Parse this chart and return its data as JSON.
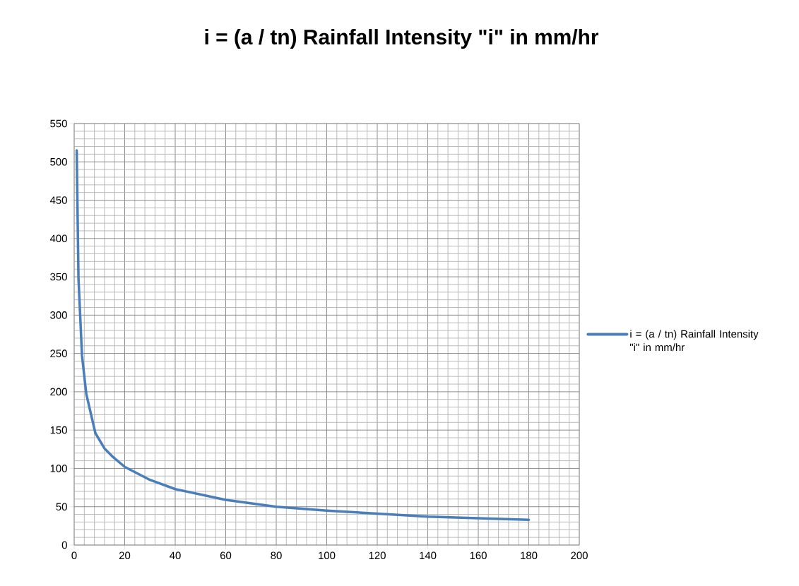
{
  "chart_data": {
    "type": "line",
    "title": "i = (a / tn) Rainfall Intensity \"i\" in mm/hr",
    "x": [
      1,
      1.7,
      3.1,
      4.8,
      8.4,
      12,
      15,
      20,
      30,
      40,
      60,
      80,
      100,
      120,
      140,
      160,
      180
    ],
    "series": [
      {
        "name": "i = (a / tn) Rainfall Intensity \"i\" in mm/hr",
        "color": "#4a7ebb",
        "values": [
          515,
          348,
          247,
          197,
          146,
          126,
          116,
          102,
          85,
          73,
          59,
          50,
          45,
          41,
          37,
          35,
          33
        ]
      }
    ],
    "xlim": [
      0,
      200
    ],
    "xticks": [
      0,
      20,
      40,
      60,
      80,
      100,
      120,
      140,
      160,
      180,
      200
    ],
    "ylim": [
      0,
      550
    ],
    "yticks": [
      0,
      50,
      100,
      150,
      200,
      250,
      300,
      350,
      400,
      450,
      500,
      550
    ],
    "grid": true,
    "legend": "right",
    "marker": "none",
    "line_style": "solid"
  }
}
